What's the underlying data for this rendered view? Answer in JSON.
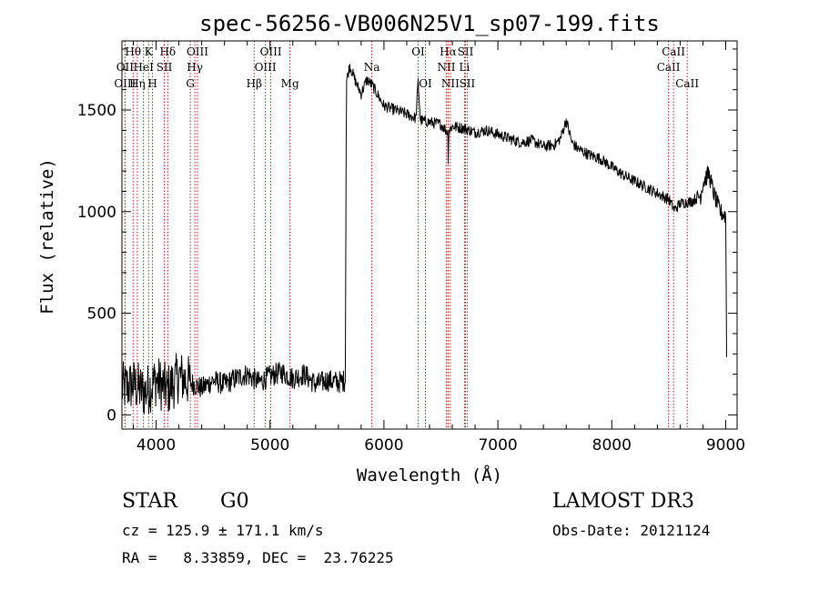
{
  "chart_data": {
    "type": "line",
    "title": "spec-56256-VB006N25V1_sp07-199.fits",
    "xlabel": "Wavelength (Å)",
    "ylabel": "Flux (relative)",
    "xlim": [
      3700,
      9100
    ],
    "ylim": [
      -70,
      1840
    ],
    "x_ticks": [
      4000,
      5000,
      6000,
      7000,
      8000,
      9000
    ],
    "y_ticks": [
      0,
      500,
      1000,
      1500
    ],
    "grid": false,
    "line_color": "#000000",
    "marker_color": "#b22222",
    "series": [
      {
        "name": "spectrum",
        "x": [
          3700,
          3800,
          3900,
          4000,
          4100,
          4200,
          4300,
          4400,
          4500,
          4600,
          4700,
          4800,
          4900,
          5000,
          5100,
          5200,
          5300,
          5400,
          5500,
          5600,
          5660,
          5670,
          5700,
          5750,
          5800,
          5850,
          5900,
          5950,
          6000,
          6100,
          6200,
          6280,
          6300,
          6320,
          6400,
          6500,
          6560,
          6563,
          6570,
          6600,
          6700,
          6800,
          6900,
          7000,
          7100,
          7200,
          7300,
          7400,
          7500,
          7550,
          7600,
          7650,
          7700,
          7800,
          7900,
          8000,
          8100,
          8200,
          8300,
          8400,
          8500,
          8550,
          8600,
          8700,
          8780,
          8800,
          8850,
          8900,
          8950,
          9000,
          9010
        ],
        "y": [
          130,
          150,
          110,
          170,
          120,
          190,
          160,
          130,
          170,
          150,
          180,
          200,
          160,
          190,
          210,
          180,
          200,
          150,
          170,
          160,
          170,
          1640,
          1720,
          1640,
          1580,
          1650,
          1620,
          1570,
          1520,
          1500,
          1480,
          1460,
          1640,
          1450,
          1440,
          1430,
          1390,
          1240,
          1400,
          1420,
          1410,
          1390,
          1400,
          1380,
          1360,
          1340,
          1350,
          1320,
          1330,
          1360,
          1450,
          1340,
          1310,
          1280,
          1260,
          1220,
          1180,
          1150,
          1120,
          1090,
          1060,
          1010,
          1040,
          1050,
          1080,
          1140,
          1190,
          1080,
          1000,
          980,
          120
        ]
      }
    ],
    "line_markers": [
      {
        "label": "OII",
        "x": 3727,
        "row": 2
      },
      {
        "label": "OIII",
        "x": 3727,
        "row": 3
      },
      {
        "label": "Hθ",
        "x": 3798,
        "row": 1
      },
      {
        "label": "Hη",
        "x": 3835,
        "row": 3
      },
      {
        "label": "HeI",
        "x": 3889,
        "row": 2
      },
      {
        "label": "K",
        "x": 3934,
        "row": 1
      },
      {
        "label": "H",
        "x": 3968,
        "row": 3
      },
      {
        "label": "SII",
        "x": 4072,
        "row": 2
      },
      {
        "label": "Hδ",
        "x": 4102,
        "row": 1
      },
      {
        "label": "G",
        "x": 4300,
        "row": 3
      },
      {
        "label": "Hγ",
        "x": 4340,
        "row": 2
      },
      {
        "label": "OIII",
        "x": 4363,
        "row": 1
      },
      {
        "label": "Hβ",
        "x": 4861,
        "row": 3
      },
      {
        "label": "OIII",
        "x": 4959,
        "row": 2
      },
      {
        "label": "OIII",
        "x": 5007,
        "row": 1
      },
      {
        "label": "Mg",
        "x": 5175,
        "row": 3
      },
      {
        "label": "Na",
        "x": 5893,
        "row": 2
      },
      {
        "label": "OI",
        "x": 6300,
        "row": 1
      },
      {
        "label": "OI",
        "x": 6364,
        "row": 3
      },
      {
        "label": "NII",
        "x": 6548,
        "row": 2
      },
      {
        "label": "Hα",
        "x": 6563,
        "row": 1
      },
      {
        "label": "NII",
        "x": 6583,
        "row": 3
      },
      {
        "label": "Li",
        "x": 6707,
        "row": 2
      },
      {
        "label": "SII",
        "x": 6716,
        "row": 1
      },
      {
        "label": "SII",
        "x": 6731,
        "row": 3
      },
      {
        "label": "CaII",
        "x": 8498,
        "row": 2
      },
      {
        "label": "CaII",
        "x": 8542,
        "row": 1
      },
      {
        "label": "CaII",
        "x": 8662,
        "row": 3
      }
    ]
  },
  "info": {
    "class": "STAR",
    "subclass": "G0",
    "survey": "LAMOST DR3",
    "cz": "cz = 125.9 ± 171.1 km/s",
    "obs_date": "Obs-Date: 20121124",
    "coords": "RA =   8.33859, DEC =  23.76225"
  }
}
